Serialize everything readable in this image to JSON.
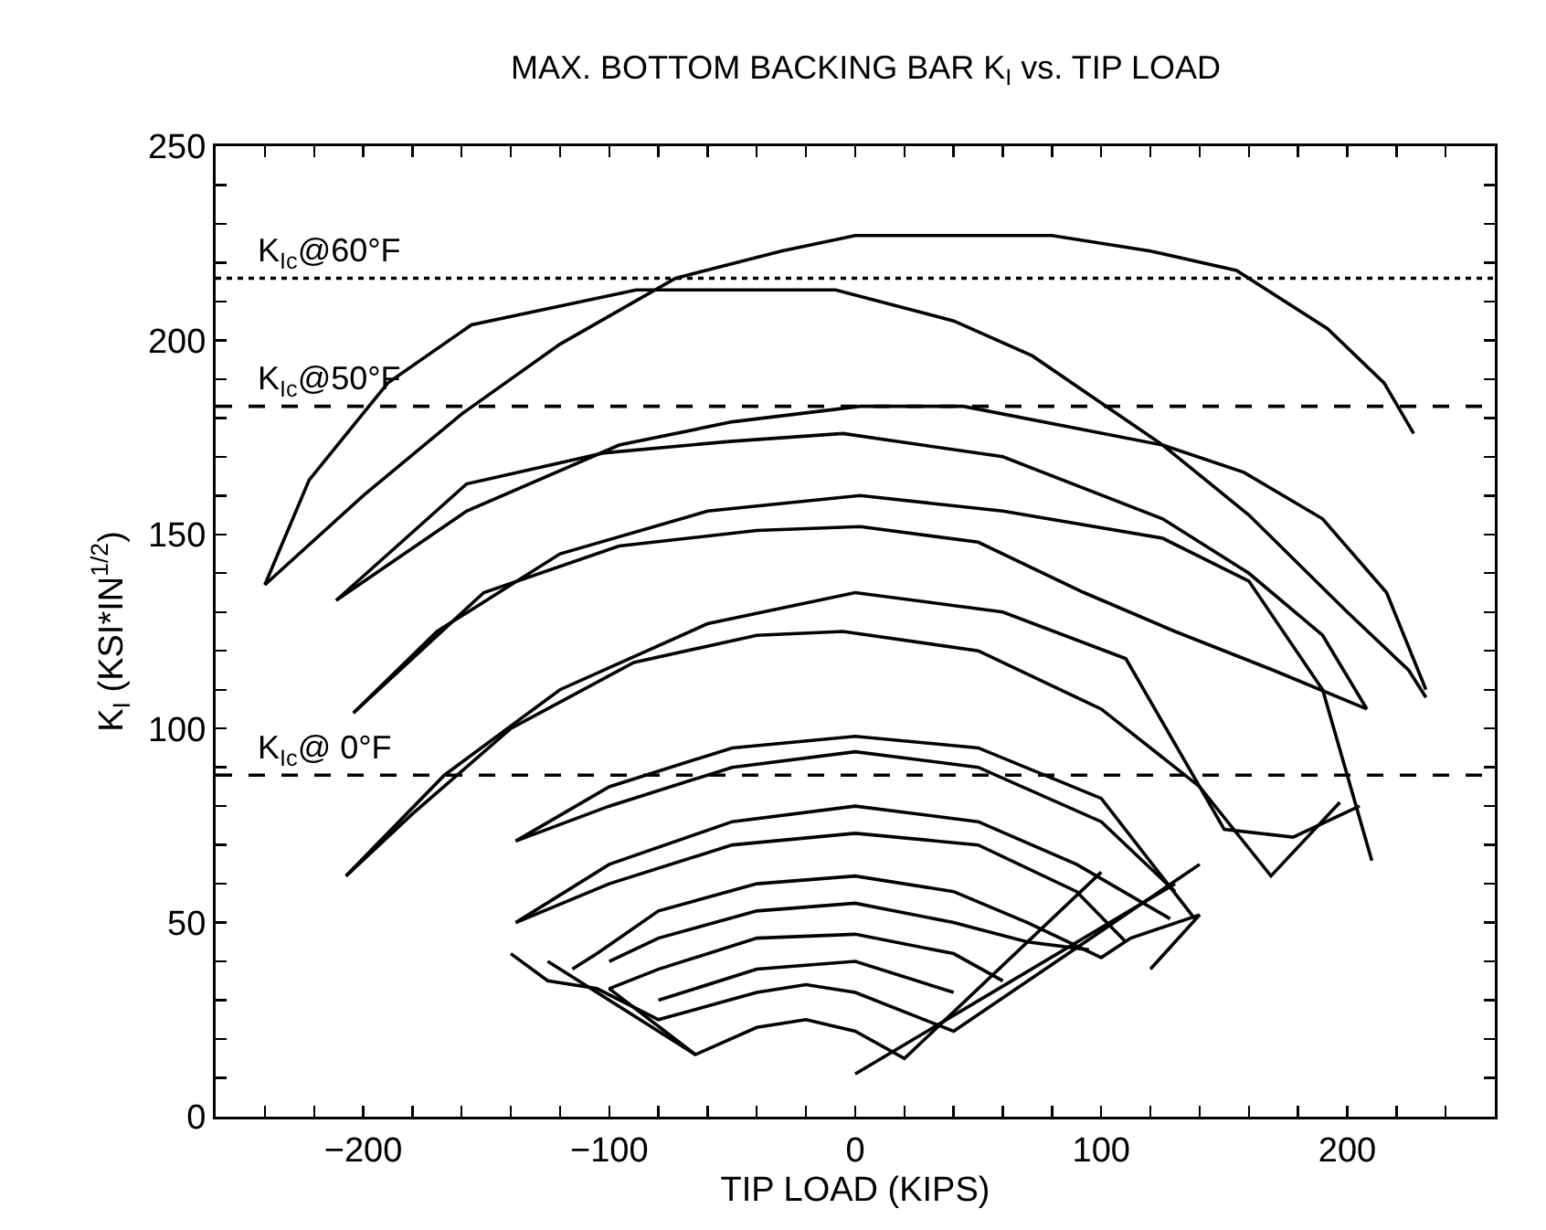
{
  "chart_data": {
    "type": "line",
    "title": "MAX. BOTTOM BACKING BAR K$_{I}$ vs. TIP LOAD",
    "xlabel": "TIP LOAD (KIPS)",
    "ylabel": "K$_{I}$ (KSI*IN$^{1/2}$)",
    "xlim": [
      -260,
      260
    ],
    "xticks": [
      {
        "value": -260,
        "label": null
      },
      {
        "value": -240,
        "label": null
      },
      {
        "value": -220,
        "label": null
      },
      -200,
      {
        "value": -180,
        "label": null
      },
      {
        "value": -160,
        "label": null
      },
      {
        "value": -140,
        "label": null
      },
      {
        "value": -120,
        "label": null
      },
      -100,
      {
        "value": -80,
        "label": null
      },
      {
        "value": -60,
        "label": null
      },
      {
        "value": -40,
        "label": null
      },
      {
        "value": -20,
        "label": null
      },
      0,
      {
        "value": 20,
        "label": null
      },
      {
        "value": 40,
        "label": null
      },
      {
        "value": 60,
        "label": null
      },
      {
        "value": 80,
        "label": null
      },
      100,
      {
        "value": 120,
        "label": null
      },
      {
        "value": 140,
        "label": null
      },
      {
        "value": 160,
        "label": null
      },
      {
        "value": 180,
        "label": null
      },
      200,
      {
        "value": 220,
        "label": null
      },
      {
        "value": 240,
        "label": null
      },
      {
        "value": 260,
        "label": null
      }
    ],
    "ylim": [
      0,
      250
    ],
    "yticks": [
      0,
      {
        "value": 10,
        "label": null
      },
      {
        "value": 20,
        "label": null
      },
      {
        "value": 30,
        "label": null
      },
      {
        "value": 40,
        "label": null
      },
      50,
      {
        "value": 60,
        "label": null
      },
      {
        "value": 70,
        "label": null
      },
      {
        "value": 80,
        "label": null
      },
      {
        "value": 90,
        "label": null
      },
      100,
      {
        "value": 110,
        "label": null
      },
      {
        "value": 120,
        "label": null
      },
      {
        "value": 130,
        "label": null
      },
      {
        "value": 140,
        "label": null
      },
      150,
      {
        "value": 160,
        "label": null
      },
      {
        "value": 170,
        "label": null
      },
      {
        "value": 180,
        "label": null
      },
      {
        "value": 190,
        "label": null
      },
      200,
      {
        "value": 210,
        "label": null
      },
      {
        "value": 220,
        "label": null
      },
      {
        "value": 230,
        "label": null
      },
      {
        "value": 240,
        "label": null
      },
      250
    ],
    "grid": false,
    "marker": "none",
    "line_style": "solid",
    "ref_lines": [
      {
        "axis": "y",
        "value": 216,
        "label": "K$_{Ic}$@60°F",
        "line_style": "dotted",
        "color": "#000000"
      },
      {
        "axis": "y",
        "value": 183,
        "label": "K$_{Ic}$@50°F",
        "line_style": "dashed",
        "color": "#000000"
      },
      {
        "axis": "y",
        "value": 88,
        "label": "K$_{Ic}$@ 0°F",
        "line_style": "dashed",
        "color": "#000000"
      }
    ],
    "series": [
      {
        "color": "#000000",
        "x": [
          -240,
          -200,
          -160,
          -120,
          -73,
          -30,
          0,
          80,
          120,
          155,
          192,
          215,
          227
        ],
        "values": [
          137,
          160,
          181,
          199,
          216,
          223,
          227,
          227,
          223,
          218,
          203,
          189,
          176
        ]
      },
      {
        "color": "#000000",
        "x": [
          -240,
          -222,
          -190,
          -156,
          -89,
          -8,
          40,
          72,
          125,
          160,
          200,
          225,
          232
        ],
        "values": [
          137,
          164,
          189,
          204,
          213,
          213,
          205,
          196,
          173,
          155,
          130,
          115,
          108
        ]
      },
      {
        "color": "#000000",
        "x": [
          -211,
          -158,
          -102,
          -50,
          -5,
          60,
          125,
          160,
          190,
          208
        ],
        "values": [
          133,
          163,
          171,
          174,
          176,
          170,
          154,
          140,
          124,
          105
        ]
      },
      {
        "color": "#000000",
        "x": [
          -211,
          -158,
          -96,
          -50,
          2,
          44,
          125,
          158,
          190,
          216,
          232
        ],
        "values": [
          133,
          156,
          173,
          179,
          183,
          183,
          173,
          166,
          154,
          135,
          110
        ]
      },
      {
        "color": "#000000",
        "x": [
          -204,
          -151,
          -96,
          -40,
          2,
          50,
          93,
          130,
          170,
          208
        ],
        "values": [
          104,
          135,
          147,
          151,
          152,
          148,
          135,
          125,
          115,
          105
        ]
      },
      {
        "color": "#000000",
        "x": [
          -204,
          -170,
          -120,
          -60,
          2,
          60,
          125,
          160,
          190,
          210
        ],
        "values": [
          104,
          125,
          145,
          156,
          160,
          156,
          149,
          138,
          110,
          66
        ]
      },
      {
        "color": "#000000",
        "x": [
          -207,
          -167,
          -120,
          -60,
          0,
          60,
          110,
          150,
          178,
          205
        ],
        "values": [
          62,
          88,
          110,
          127,
          135,
          130,
          118,
          74,
          72,
          80
        ]
      },
      {
        "color": "#000000",
        "x": [
          -207,
          -180,
          -140,
          -90,
          -40,
          -5,
          50,
          100,
          140,
          169,
          197
        ],
        "values": [
          62,
          78,
          100,
          117,
          124,
          125,
          120,
          105,
          85,
          62,
          81
        ]
      },
      {
        "color": "#000000",
        "x": [
          -138,
          -100,
          -50,
          0,
          50,
          100,
          138
        ],
        "values": [
          71,
          85,
          95,
          98,
          95,
          82,
          51
        ]
      },
      {
        "color": "#000000",
        "x": [
          -138,
          -100,
          -50,
          0,
          50,
          100,
          130
        ],
        "values": [
          71,
          80,
          90,
          94,
          90,
          76,
          58
        ]
      },
      {
        "color": "#000000",
        "x": [
          -138,
          -100,
          -50,
          0,
          50,
          90,
          128
        ],
        "values": [
          50,
          65,
          76,
          80,
          76,
          65,
          51
        ]
      },
      {
        "color": "#000000",
        "x": [
          -138,
          -100,
          -50,
          0,
          50,
          90,
          110
        ],
        "values": [
          50,
          60,
          70,
          73,
          70,
          58,
          45
        ]
      },
      {
        "color": "#000000",
        "x": [
          -115,
          -105,
          -80,
          -40,
          0,
          40,
          70,
          100,
          112,
          140,
          120
        ],
        "values": [
          38,
          42,
          53,
          60,
          62,
          58,
          50,
          41,
          46,
          52,
          38
        ]
      },
      {
        "color": "#000000",
        "x": [
          -100,
          -80,
          -40,
          0,
          40,
          70,
          95
        ],
        "values": [
          40,
          46,
          53,
          55,
          50,
          45,
          43
        ]
      },
      {
        "color": "#000000",
        "x": [
          60,
          40,
          0,
          -40,
          -80,
          -100,
          -65
        ],
        "values": [
          35,
          42,
          47,
          46,
          38,
          33,
          16
        ]
      },
      {
        "color": "#000000",
        "x": [
          -80,
          -40,
          0,
          40
        ],
        "values": [
          30,
          38,
          40,
          32
        ]
      },
      {
        "color": "#000000",
        "x": [
          -140,
          -125,
          -105,
          -80,
          -40,
          -20,
          0,
          40,
          140
        ],
        "values": [
          42,
          35,
          33,
          25,
          32,
          34,
          32,
          22,
          65
        ]
      },
      {
        "color": "#000000",
        "x": [
          -125,
          -65,
          -40,
          -20,
          0,
          20,
          100
        ],
        "values": [
          40,
          16,
          23,
          25,
          22,
          15,
          63
        ]
      },
      {
        "color": "#000000",
        "x": [
          0,
          130
        ],
        "values": [
          11,
          60
        ]
      }
    ]
  }
}
